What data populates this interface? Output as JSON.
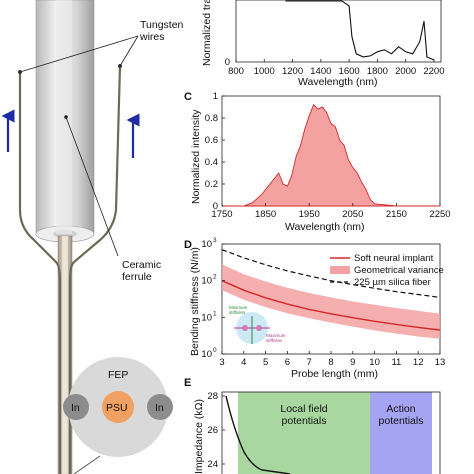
{
  "labels": {
    "tungsten": "Tungsten\nwires",
    "ceramic": "Ceramic\nferrule",
    "fep": "FEP",
    "in_left": "In",
    "psu": "PSU",
    "in_right": "In"
  },
  "panelA": {
    "ylabel": "Normalized tra",
    "xlabel": "Wavelength (nm)",
    "xticks": [
      "800",
      "1000",
      "1200",
      "1400",
      "1600",
      "1800",
      "2000",
      "2200"
    ],
    "yticks": [
      "0"
    ]
  },
  "panelC": {
    "letter": "C",
    "ylabel": "Normalized intensity",
    "xlabel": "Wavelength (nm)",
    "xticks": [
      "1750",
      "1850",
      "1950",
      "2050",
      "2150",
      "2250"
    ],
    "yticks": [
      "0",
      "0.2",
      "0.4",
      "0.6",
      "0.8",
      "1"
    ]
  },
  "panelD": {
    "letter": "D",
    "ylabel": "Bending stiffness (N/m)",
    "xlabel": "Probe length (mm)",
    "xticks": [
      "3",
      "4",
      "5",
      "6",
      "7",
      "8",
      "9",
      "10",
      "11",
      "12",
      "13"
    ],
    "yticks": [
      "10",
      "10",
      "10",
      "10"
    ],
    "yexp": [
      "0",
      "1",
      "2",
      "3"
    ],
    "legend": [
      "Soft neural implant",
      "Geometrical variance",
      "225 µm silica fiber"
    ],
    "inset_min": "Minimum\nstiffness",
    "inset_max": "Maximum\nstiffness"
  },
  "panelE": {
    "letter": "E",
    "ylabel": "Impedance (kΩ)",
    "yticks": [
      "28",
      "26",
      "24"
    ],
    "region1": "Local field\npotentials",
    "region2": "Action\npotentials"
  },
  "colors": {
    "red": "#d62728",
    "redfill": "#f4a1a1",
    "green": "#a8d8a0",
    "blue": "#a4a4f2",
    "arrow": "#1f2aa6",
    "psu": "#f0a060",
    "circle": "#d9d9d9",
    "in": "#8c8c8c"
  },
  "chart_data": [
    {
      "type": "line",
      "panel": "A",
      "xlabel": "Wavelength (nm)",
      "ylabel": "Normalized tra",
      "xlim": [
        800,
        2250
      ],
      "ylim": [
        0,
        1
      ],
      "x": [
        1150,
        1200,
        1250,
        1300,
        1350,
        1400,
        1450,
        1500,
        1550,
        1600,
        1620,
        1650,
        1700,
        1750,
        1800,
        1850,
        1900,
        1950,
        2000,
        2050,
        2100,
        2130,
        2150,
        2200
      ],
      "y": [
        0.95,
        0.92,
        0.96,
        0.82,
        0.92,
        0.88,
        0.86,
        0.9,
        0.92,
        0.55,
        0.25,
        0.08,
        0.05,
        0.06,
        0.1,
        0.12,
        0.08,
        0.15,
        0.1,
        0.08,
        0.2,
        0.4,
        0.05,
        0.02
      ]
    },
    {
      "type": "area",
      "panel": "C",
      "xlabel": "Wavelength (nm)",
      "ylabel": "Normalized intensity",
      "xlim": [
        1750,
        2250
      ],
      "ylim": [
        0,
        1
      ],
      "x": [
        1750,
        1800,
        1820,
        1840,
        1860,
        1880,
        1890,
        1900,
        1910,
        1920,
        1930,
        1940,
        1950,
        1960,
        1970,
        1980,
        1990,
        2000,
        2010,
        2020,
        2030,
        2040,
        2050,
        2060,
        2070,
        2080,
        2090,
        2100,
        2150,
        2250
      ],
      "y": [
        0,
        0,
        0.03,
        0.1,
        0.2,
        0.3,
        0.2,
        0.18,
        0.28,
        0.45,
        0.55,
        0.7,
        0.82,
        0.92,
        0.88,
        0.9,
        0.85,
        0.75,
        0.72,
        0.6,
        0.55,
        0.42,
        0.35,
        0.3,
        0.22,
        0.15,
        0.06,
        0.02,
        0,
        0
      ]
    },
    {
      "type": "line",
      "panel": "D",
      "xlabel": "Probe length (mm)",
      "ylabel": "Bending stiffness (N/m)",
      "xlim": [
        3,
        13
      ],
      "ylim": [
        1,
        1000
      ],
      "yscale": "log",
      "x": [
        3,
        4,
        5,
        6,
        7,
        8,
        9,
        10,
        11,
        12,
        13
      ],
      "series": [
        {
          "name": "Soft neural implant",
          "values": [
            100,
            55,
            34,
            23,
            16.5,
            12.5,
            9.8,
            7.8,
            6.4,
            5.3,
            4.5
          ]
        },
        {
          "name": "Geometrical variance",
          "lower": [
            55,
            30,
            19,
            13,
            9.5,
            7.2,
            5.6,
            4.4,
            3.6,
            3.0,
            2.6
          ],
          "upper": [
            280,
            150,
            95,
            64,
            46,
            35,
            27,
            22,
            18,
            15,
            12.5
          ]
        },
        {
          "name": "225 µm silica fiber",
          "values": [
            700,
            420,
            270,
            185,
            135,
            100,
            78,
            62,
            50,
            42,
            35
          ]
        }
      ]
    }
  ]
}
